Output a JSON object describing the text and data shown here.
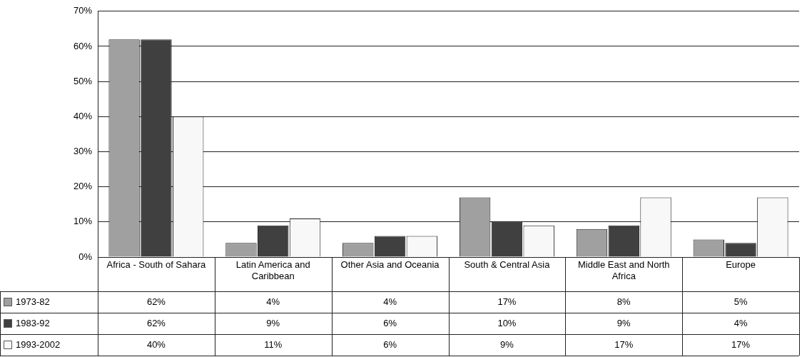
{
  "chart_data": {
    "type": "bar",
    "categories": [
      "Africa - South of Sahara",
      "Latin America and Caribbean",
      "Other Asia and Oceania",
      "South & Central Asia",
      "Middle East and North Africa",
      "Europe"
    ],
    "series": [
      {
        "name": "1973-82",
        "color": "#a0a0a0",
        "values": [
          62,
          4,
          4,
          17,
          8,
          5
        ],
        "value_labels": [
          "62%",
          "4%",
          "4%",
          "17%",
          "8%",
          "5%"
        ]
      },
      {
        "name": "1983-92",
        "color": "#404040",
        "values": [
          62,
          9,
          6,
          10,
          9,
          4
        ],
        "value_labels": [
          "62%",
          "9%",
          "6%",
          "10%",
          "9%",
          "4%"
        ]
      },
      {
        "name": "1993-2002",
        "color": "#f8f8f8",
        "values": [
          40,
          11,
          6,
          9,
          17,
          17
        ],
        "value_labels": [
          "40%",
          "11%",
          "6%",
          "9%",
          "17%",
          "17%"
        ]
      }
    ],
    "ylim": [
      0,
      70
    ],
    "yticks": [
      {
        "value": 0,
        "label": "0%"
      },
      {
        "value": 10,
        "label": "10%"
      },
      {
        "value": 20,
        "label": "20%"
      },
      {
        "value": 30,
        "label": "30%"
      },
      {
        "value": 40,
        "label": "40%"
      },
      {
        "value": 50,
        "label": "50%"
      },
      {
        "value": 60,
        "label": "60%"
      },
      {
        "value": 70,
        "label": "70%"
      }
    ],
    "grid": "y",
    "legend": "bottom left"
  }
}
